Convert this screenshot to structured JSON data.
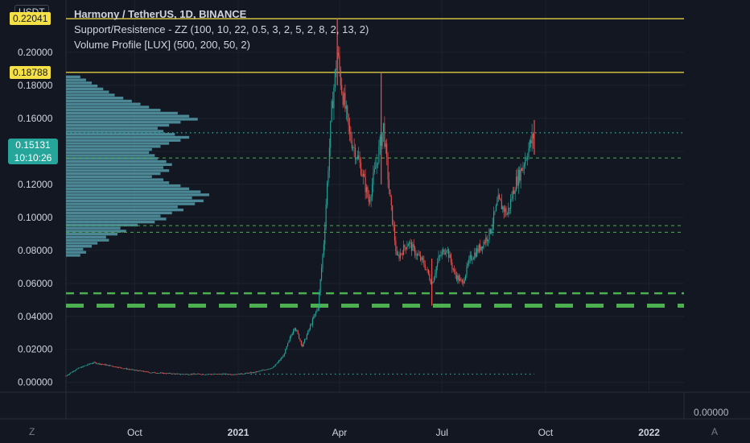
{
  "legend": {
    "title": "Harmony / TetherUS, 1D, BINANCE",
    "indicator1": "Support/Resistence - ZZ (100, 10, 22, 0.5, 3, 2, 5, 2, 8, 2, 13, 2)",
    "indicator2": "Volume Profile [LUX] (500, 200, 50, 2)"
  },
  "unit_button": "USDT",
  "current_price": {
    "value": "0.15131",
    "countdown": "10:10:26",
    "color": "#26a69a"
  },
  "badges": [
    {
      "text": "0.22041",
      "value": 0.22041,
      "color": "#f5e146"
    },
    {
      "text": "0.18788",
      "value": 0.18788,
      "color": "#f5e146"
    }
  ],
  "bottom_right_value": "0.00000",
  "corner_left_label": "Z",
  "corner_right_label": "A",
  "colors": {
    "background": "#131722",
    "grid": "#1e222d",
    "text": "#d1d4dc",
    "up": "#26a69a",
    "down": "#ef5350",
    "resistance": "#f5e146",
    "support": "#4caf50",
    "volume_profile": "#5ba6b5"
  },
  "chart_data": {
    "type": "candlestick",
    "title": "Harmony / TetherUS, 1D, BINANCE",
    "y_ticks": [
      "0.20000",
      "0.18000",
      "0.16000",
      "0.14000",
      "0.12000",
      "0.10000",
      "0.08000",
      "0.06000",
      "0.04000",
      "0.02000",
      "0.00000"
    ],
    "y_tick_values": [
      0.2,
      0.18,
      0.16,
      0.14,
      0.12,
      0.1,
      0.08,
      0.06,
      0.04,
      0.02,
      0.0
    ],
    "ylim": [
      -0.006,
      0.222
    ],
    "x_ticks": [
      "Oct",
      "2021",
      "Apr",
      "Jul",
      "Oct",
      "2022"
    ],
    "x_tick_dates": [
      "2020-10-01",
      "2021-01-01",
      "2021-04-01",
      "2021-07-01",
      "2021-10-01",
      "2022-01-01"
    ],
    "x_tick_bold": [
      false,
      true,
      false,
      false,
      false,
      true
    ],
    "xlim": [
      "2020-08-01",
      "2022-02-01"
    ],
    "resistance_levels": [
      0.22041,
      0.18788
    ],
    "dotted_levels": [
      {
        "value": 0.15131,
        "from": "2020-08-01",
        "to": "2022-02-01",
        "color": "#26a69a"
      },
      {
        "value": 0.005,
        "from": "2021-01-12",
        "to": "2021-09-21",
        "color": "#26a69a"
      }
    ],
    "dashed_levels": [
      {
        "value": 0.136,
        "weight": "thin"
      },
      {
        "value": 0.095,
        "weight": "thin"
      },
      {
        "value": 0.091,
        "weight": "thin"
      },
      {
        "value": 0.054,
        "weight": "medium"
      },
      {
        "value": 0.0465,
        "weight": "thick"
      }
    ],
    "volume_profile": {
      "price_min": 0.076,
      "price_max": 0.186,
      "rows": [
        0.1,
        0.14,
        0.12,
        0.18,
        0.22,
        0.3,
        0.28,
        0.36,
        0.42,
        0.38,
        0.5,
        0.62,
        0.7,
        0.66,
        0.74,
        0.82,
        0.78,
        0.9,
        0.96,
        0.88,
        1.0,
        0.94,
        0.86,
        0.8,
        0.72,
        0.68,
        0.6,
        0.66,
        0.72,
        0.68,
        0.74,
        0.7,
        0.64,
        0.62,
        0.58,
        0.6,
        0.66,
        0.72,
        0.8,
        0.86,
        0.76,
        0.68,
        0.64,
        0.72,
        0.8,
        0.92,
        0.86,
        0.78,
        0.66,
        0.58,
        0.52,
        0.46,
        0.4,
        0.34,
        0.3,
        0.26,
        0.22,
        0.18,
        0.14,
        0.1
      ]
    },
    "price_path": [
      [
        "2020-08-01",
        0.004
      ],
      [
        "2020-08-10",
        0.008
      ],
      [
        "2020-08-25",
        0.012
      ],
      [
        "2020-09-10",
        0.01
      ],
      [
        "2020-09-25",
        0.008
      ],
      [
        "2020-10-15",
        0.006
      ],
      [
        "2020-11-10",
        0.005
      ],
      [
        "2020-12-10",
        0.005
      ],
      [
        "2021-01-01",
        0.005
      ],
      [
        "2021-01-15",
        0.006
      ],
      [
        "2021-02-01",
        0.009
      ],
      [
        "2021-02-10",
        0.016
      ],
      [
        "2021-02-20",
        0.034
      ],
      [
        "2021-02-27",
        0.022
      ],
      [
        "2021-03-06",
        0.034
      ],
      [
        "2021-03-13",
        0.046
      ],
      [
        "2021-03-18",
        0.085
      ],
      [
        "2021-03-21",
        0.12
      ],
      [
        "2021-03-25",
        0.165
      ],
      [
        "2021-03-30",
        0.2
      ],
      [
        "2021-04-03",
        0.178
      ],
      [
        "2021-04-10",
        0.15
      ],
      [
        "2021-04-20",
        0.13
      ],
      [
        "2021-04-27",
        0.11
      ],
      [
        "2021-05-03",
        0.13
      ],
      [
        "2021-05-10",
        0.155
      ],
      [
        "2021-05-16",
        0.11
      ],
      [
        "2021-05-22",
        0.075
      ],
      [
        "2021-06-01",
        0.085
      ],
      [
        "2021-06-08",
        0.078
      ],
      [
        "2021-06-15",
        0.072
      ],
      [
        "2021-06-22",
        0.06
      ],
      [
        "2021-06-28",
        0.075
      ],
      [
        "2021-07-05",
        0.082
      ],
      [
        "2021-07-12",
        0.066
      ],
      [
        "2021-07-19",
        0.06
      ],
      [
        "2021-07-26",
        0.075
      ],
      [
        "2021-08-04",
        0.082
      ],
      [
        "2021-08-12",
        0.09
      ],
      [
        "2021-08-20",
        0.11
      ],
      [
        "2021-08-28",
        0.102
      ],
      [
        "2021-09-04",
        0.12
      ],
      [
        "2021-09-10",
        0.13
      ],
      [
        "2021-09-15",
        0.14
      ],
      [
        "2021-09-21",
        0.151
      ]
    ],
    "highlights": [
      {
        "date": "2021-03-30",
        "high": 0.22041,
        "low": 0.18
      },
      {
        "date": "2021-05-08",
        "high": 0.18788,
        "low": 0.12
      },
      {
        "date": "2021-06-22",
        "high": 0.075,
        "low": 0.0465
      },
      {
        "date": "2021-09-21",
        "high": 0.159,
        "low": 0.138
      }
    ]
  }
}
